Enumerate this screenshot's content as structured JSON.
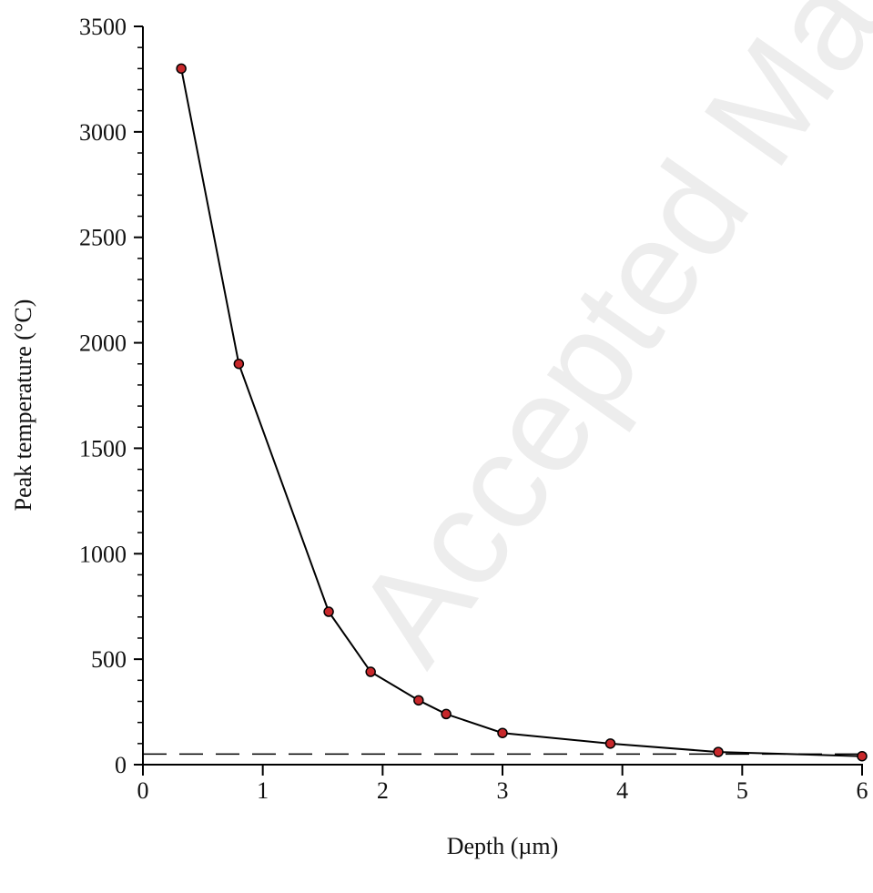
{
  "chart_data": {
    "type": "line",
    "x_label": "Depth (µm)",
    "y_label": "Peak temperature (°C)",
    "watermark": "Accepted Ma",
    "x": [
      0.32,
      0.8,
      1.55,
      1.9,
      2.3,
      2.53,
      3.0,
      3.9,
      4.8,
      6.0
    ],
    "series": [
      {
        "color": "#c8282b",
        "values": [
          3300,
          1900,
          725,
          440,
          305,
          240,
          150,
          100,
          60,
          40
        ]
      }
    ],
    "reference_line": 50,
    "xlim": [
      0,
      6
    ],
    "xticks": [
      0,
      1,
      2,
      3,
      4,
      5,
      6
    ],
    "ylim": [
      0,
      3500
    ],
    "yticks": [
      0,
      500,
      1000,
      1500,
      2000,
      2500,
      3000,
      3500
    ],
    "yminorticks": [
      100,
      200,
      300,
      400,
      600,
      700,
      800,
      900,
      1100,
      1200,
      1300,
      1400,
      1600,
      1700,
      1800,
      1900,
      2100,
      2200,
      2300,
      2400,
      2600,
      2700,
      2800,
      2900,
      3100,
      3200,
      3300,
      3400
    ],
    "grid": false
  }
}
